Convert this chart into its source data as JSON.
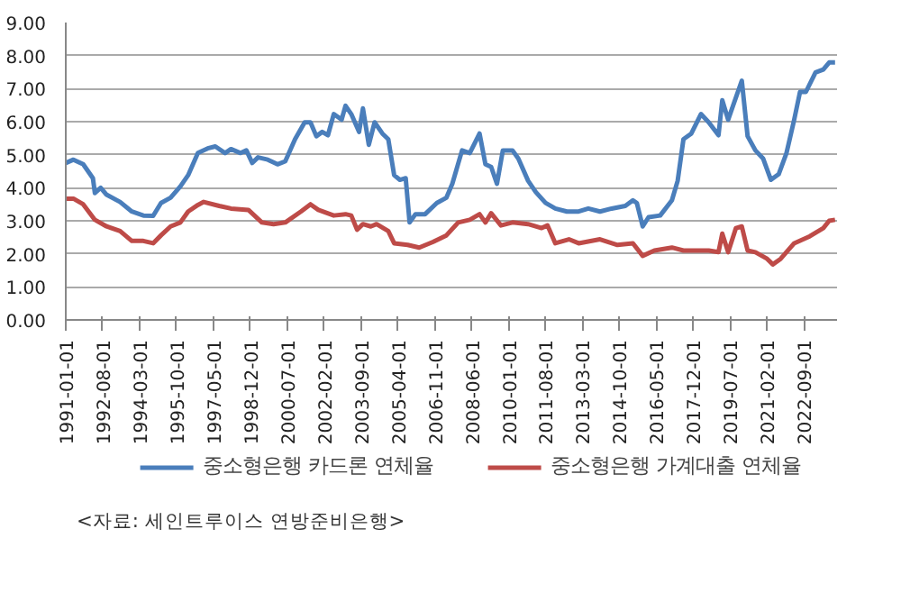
{
  "chart_data": {
    "type": "line",
    "xlim": [
      "1991-01-01",
      "2024-02-01"
    ],
    "xticks": [
      "1991-01-01",
      "1992-08-01",
      "1994-03-01",
      "1995-10-01",
      "1997-05-01",
      "1998-12-01",
      "2000-07-01",
      "2002-02-01",
      "2003-09-01",
      "2005-04-01",
      "2006-11-01",
      "2008-06-01",
      "2010-01-01",
      "2011-08-01",
      "2013-03-01",
      "2014-10-01",
      "2016-05-01",
      "2017-12-01",
      "2019-07-01",
      "2021-02-01",
      "2022-09-01"
    ],
    "ylim": [
      0,
      9
    ],
    "yticks": [
      {
        "value": 0,
        "label": "0.00"
      },
      {
        "value": 1,
        "label": "1.00"
      },
      {
        "value": 2,
        "label": "2.00"
      },
      {
        "value": 3,
        "label": "3.00"
      },
      {
        "value": 4,
        "label": "4.00"
      },
      {
        "value": 5,
        "label": "5.00"
      },
      {
        "value": 6,
        "label": "6.00"
      },
      {
        "value": 7,
        "label": "7.00"
      },
      {
        "value": 8,
        "label": "8.00"
      },
      {
        "value": 9,
        "label": "9.00"
      }
    ],
    "grid": "y",
    "legend": "bottom",
    "annotations": [
      "<자료: 세인트루이스 연방준비은행>"
    ],
    "series": [
      {
        "name": "중소형은행 카드론 연체율",
        "color": "#4a7ebb",
        "x": [
          "1991-01",
          "1991-05",
          "1991-10",
          "1992-03",
          "1992-04",
          "1992-07",
          "1992-10",
          "1993-05",
          "1993-11",
          "1994-05",
          "1994-10",
          "1995-02",
          "1995-07",
          "1995-12",
          "1996-04",
          "1996-09",
          "1997-02",
          "1997-06",
          "1997-11",
          "1998-02",
          "1998-07",
          "1998-10",
          "1999-01",
          "1999-04",
          "1999-09",
          "2000-02",
          "2000-06",
          "2000-11",
          "2001-04",
          "2001-07",
          "2001-10",
          "2002-01",
          "2002-04",
          "2002-07",
          "2002-11",
          "2003-01",
          "2003-04",
          "2003-08",
          "2003-10",
          "2004-01",
          "2004-04",
          "2004-08",
          "2004-11",
          "2005-02",
          "2005-05",
          "2005-08",
          "2005-10",
          "2006-01",
          "2006-06",
          "2006-12",
          "2007-05",
          "2007-08",
          "2008-01",
          "2008-05",
          "2008-10",
          "2009-01",
          "2009-04",
          "2009-07",
          "2009-10",
          "2010-03",
          "2010-06",
          "2010-11",
          "2011-03",
          "2011-08",
          "2012-01",
          "2012-07",
          "2013-01",
          "2013-06",
          "2013-12",
          "2014-06",
          "2015-01",
          "2015-05",
          "2015-07",
          "2015-10",
          "2016-01",
          "2016-07",
          "2017-01",
          "2017-04",
          "2017-07",
          "2017-11",
          "2018-04",
          "2018-08",
          "2019-01",
          "2019-03",
          "2019-06",
          "2020-01",
          "2020-04",
          "2020-08",
          "2020-12",
          "2021-04",
          "2021-08",
          "2021-12",
          "2022-04",
          "2022-07",
          "2022-10",
          "2023-03",
          "2023-07",
          "2023-10",
          "2024-01"
        ],
        "values": [
          4.75,
          4.85,
          4.71,
          4.29,
          3.84,
          4.0,
          3.79,
          3.57,
          3.28,
          3.16,
          3.15,
          3.54,
          3.7,
          4.04,
          4.38,
          5.05,
          5.19,
          5.25,
          5.05,
          5.17,
          5.05,
          5.13,
          4.75,
          4.92,
          4.85,
          4.71,
          4.8,
          5.47,
          5.98,
          5.98,
          5.56,
          5.69,
          5.59,
          6.23,
          6.06,
          6.48,
          6.23,
          5.69,
          6.4,
          5.3,
          5.98,
          5.64,
          5.47,
          4.38,
          4.24,
          4.29,
          2.95,
          3.2,
          3.2,
          3.54,
          3.7,
          4.12,
          5.13,
          5.05,
          5.64,
          4.71,
          4.63,
          4.12,
          5.13,
          5.13,
          4.88,
          4.21,
          3.87,
          3.54,
          3.37,
          3.28,
          3.28,
          3.37,
          3.28,
          3.37,
          3.45,
          3.62,
          3.54,
          2.83,
          3.11,
          3.16,
          3.62,
          4.21,
          5.47,
          5.64,
          6.23,
          5.98,
          5.59,
          6.65,
          6.06,
          7.24,
          5.56,
          5.13,
          4.88,
          4.24,
          4.41,
          5.05,
          6.06,
          6.9,
          6.9,
          7.49,
          7.58,
          7.79,
          7.79
        ]
      },
      {
        "name": "중소형은행 가계대출 연체율",
        "color": "#be4b48",
        "x": [
          "1991-01",
          "1991-05",
          "1991-10",
          "1992-04",
          "1992-10",
          "1993-05",
          "1993-11",
          "1994-05",
          "1994-10",
          "1995-02",
          "1995-07",
          "1995-12",
          "1996-04",
          "1996-09",
          "1996-12",
          "1997-08",
          "1998-02",
          "1998-11",
          "1999-06",
          "1999-12",
          "2000-06",
          "2001-02",
          "2001-07",
          "2001-11",
          "2002-07",
          "2003-01",
          "2003-04",
          "2003-07",
          "2003-10",
          "2004-02",
          "2004-05",
          "2004-11",
          "2005-02",
          "2005-09",
          "2006-03",
          "2006-10",
          "2007-05",
          "2007-11",
          "2008-05",
          "2008-10",
          "2009-01",
          "2009-04",
          "2009-09",
          "2010-03",
          "2010-11",
          "2011-06",
          "2011-09",
          "2012-01",
          "2012-08",
          "2013-01",
          "2013-12",
          "2014-09",
          "2015-05",
          "2015-10",
          "2016-04",
          "2017-01",
          "2017-07",
          "2018-08",
          "2019-01",
          "2019-03",
          "2019-06",
          "2019-10",
          "2020-01",
          "2020-04",
          "2020-08",
          "2021-02",
          "2021-05",
          "2021-09",
          "2022-04",
          "2022-12",
          "2023-07",
          "2023-10",
          "2024-01"
        ],
        "values": [
          3.67,
          3.67,
          3.5,
          3.03,
          2.83,
          2.69,
          2.39,
          2.39,
          2.32,
          2.56,
          2.83,
          2.95,
          3.28,
          3.48,
          3.57,
          3.45,
          3.37,
          3.33,
          2.95,
          2.9,
          2.95,
          3.28,
          3.5,
          3.33,
          3.16,
          3.2,
          3.16,
          2.73,
          2.9,
          2.83,
          2.9,
          2.69,
          2.32,
          2.27,
          2.19,
          2.36,
          2.56,
          2.95,
          3.03,
          3.2,
          2.95,
          3.23,
          2.86,
          2.95,
          2.9,
          2.78,
          2.86,
          2.32,
          2.44,
          2.32,
          2.44,
          2.27,
          2.32,
          1.94,
          2.1,
          2.19,
          2.1,
          2.1,
          2.05,
          2.61,
          2.05,
          2.78,
          2.83,
          2.1,
          2.05,
          1.85,
          1.68,
          1.85,
          2.32,
          2.53,
          2.78,
          3.0,
          3.03
        ]
      }
    ]
  }
}
